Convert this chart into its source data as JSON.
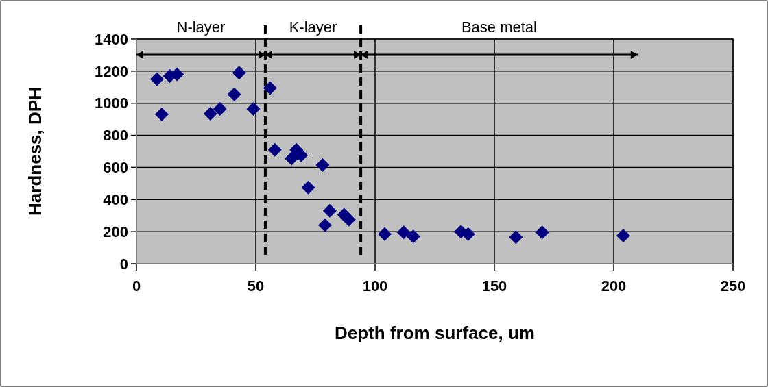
{
  "chart_data": {
    "type": "scatter",
    "xlabel": "Depth from surface, um",
    "ylabel": "Hardness, DPH",
    "xlim": [
      0,
      250
    ],
    "xticks": [
      0,
      50,
      100,
      150,
      200,
      250
    ],
    "ylim": [
      0,
      1400
    ],
    "yticks": [
      0,
      200,
      400,
      600,
      800,
      1000,
      1200,
      1400
    ],
    "grid": true,
    "marker": "diamond",
    "series": [
      {
        "color": "#000080",
        "x": [
          8.6,
          14,
          17,
          10.6,
          31,
          35,
          41,
          43,
          49,
          56,
          58,
          65,
          67,
          69,
          78,
          72,
          81,
          79,
          87,
          89,
          104,
          112,
          116,
          136,
          139,
          159,
          170,
          204
        ],
        "values": [
          1150,
          1170,
          1180,
          930,
          935,
          965,
          1055,
          1190,
          965,
          1095,
          710,
          655,
          710,
          675,
          615,
          475,
          330,
          240,
          305,
          275,
          185,
          195,
          170,
          200,
          185,
          165,
          195,
          175
        ]
      }
    ],
    "ref_lines": [
      {
        "axis": "x",
        "value": 54,
        "line_style": "dashed",
        "color": "#000000"
      },
      {
        "axis": "x",
        "value": 94,
        "line_style": "dashed",
        "color": "#000000"
      }
    ],
    "annotations": [
      "N-layer",
      "K-layer",
      "Base metal"
    ]
  }
}
